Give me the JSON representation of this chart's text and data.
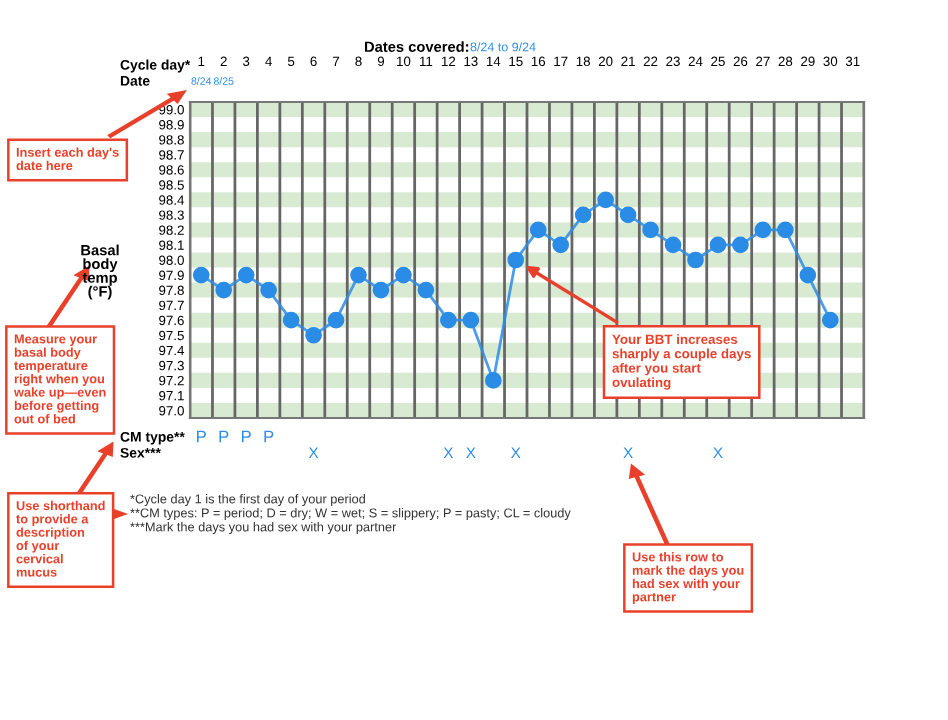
{
  "chart_data": {
    "type": "line",
    "title": "Dates covered:",
    "subtitle": "8/24 to 9/24",
    "xlabel": "Cycle day*",
    "ylabel": "Basal body temp (°F)",
    "categories": [
      "1",
      "2",
      "3",
      "4",
      "5",
      "6",
      "7",
      "8",
      "9",
      "10",
      "11",
      "12",
      "13",
      "14",
      "15",
      "16",
      "17",
      "18",
      "20",
      "21",
      "22",
      "23",
      "24",
      "25",
      "26",
      "27",
      "28",
      "29",
      "30",
      "31"
    ],
    "series": [
      {
        "color": "#2b8ce6",
        "values": [
          97.9,
          97.8,
          97.9,
          97.8,
          97.6,
          97.5,
          97.6,
          97.9,
          97.8,
          97.9,
          97.8,
          97.6,
          97.6,
          97.2,
          98.0,
          98.2,
          98.1,
          98.3,
          98.4,
          98.3,
          98.2,
          98.1,
          98.0,
          98.1,
          98.1,
          98.2,
          98.2,
          97.9,
          97.6,
          null
        ]
      }
    ],
    "ylim": [
      96.95,
      99.05
    ],
    "yticks": [
      {
        "value": 97.0,
        "label": "97.0"
      },
      97.1,
      97.2,
      97.3,
      97.4,
      97.5,
      97.6,
      97.7,
      97.8,
      97.9,
      {
        "value": 98.0,
        "label": "98.0"
      },
      98.1,
      98.2,
      98.3,
      98.4,
      98.5,
      98.6,
      98.7,
      98.8,
      98.9,
      {
        "value": 99.0,
        "label": "99.0"
      }
    ],
    "grid": true,
    "marker": "circle",
    "line_style": "solid",
    "annotations": [
      "Date",
      "8/24",
      "8/25",
      "CM type**",
      "P",
      "P",
      "P",
      "P",
      "Sex***",
      "X",
      "X",
      "X",
      "X",
      "X",
      "X",
      "Insert each day's date here",
      "Measure your basal body temperature right when you wake up—even before getting out of bed",
      "Use shorthand to provide a description of your cervical mucus",
      {
        "text": "Your BBT increases sharply a couple days after you start ovulating",
        "x": "15",
        "y": 98.0
      },
      "Use this row to mark the days you had sex with your partner",
      "*Cycle day 1 is the first day of your period",
      "**CM types: P = period; D = dry; W = wet; S = slippery; P = pasty; CL = cloudy",
      "***Mark the days you had sex with your partner"
    ]
  }
}
